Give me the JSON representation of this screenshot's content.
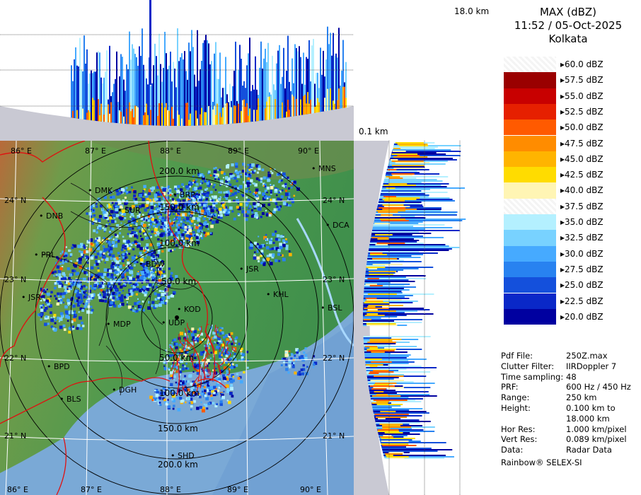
{
  "header": {
    "product": "MAX (dBZ)",
    "datetime": "11:52 / 05-Oct-2025",
    "station": "Kolkata"
  },
  "profile_labels": {
    "top_height": "18.0 km",
    "bottom_height": "0.1 km"
  },
  "legend": [
    {
      "label": "60.0 dBZ",
      "color": "#ffffff"
    },
    {
      "label": "57.5 dBZ",
      "color": "#9a0000"
    },
    {
      "label": "55.0 dBZ",
      "color": "#c80000"
    },
    {
      "label": "52.5 dBZ",
      "color": "#e62000"
    },
    {
      "label": "50.0 dBZ",
      "color": "#ff5a00"
    },
    {
      "label": "47.5 dBZ",
      "color": "#ff8c00"
    },
    {
      "label": "45.0 dBZ",
      "color": "#ffb400"
    },
    {
      "label": "42.5 dBZ",
      "color": "#ffdc00"
    },
    {
      "label": "40.0 dBZ",
      "color": "#fff5b4"
    },
    {
      "label": "37.5 dBZ",
      "color": "#ffffff"
    },
    {
      "label": "35.0 dBZ",
      "color": "#b4f0ff"
    },
    {
      "label": "32.5 dBZ",
      "color": "#78d2ff"
    },
    {
      "label": "30.0 dBZ",
      "color": "#46aaff"
    },
    {
      "label": "27.5 dBZ",
      "color": "#2882f0"
    },
    {
      "label": "25.0 dBZ",
      "color": "#1450dc"
    },
    {
      "label": "22.5 dBZ",
      "color": "#0a28c8"
    },
    {
      "label": "20.0 dBZ",
      "color": "#0000a0"
    }
  ],
  "info": [
    {
      "key": "Pdf File:",
      "value": "250Z.max"
    },
    {
      "key": "Clutter Filter:",
      "value": "IIRDoppler 7"
    },
    {
      "key": "Time sampling:",
      "value": "48"
    },
    {
      "key": "PRF:",
      "value": "600 Hz / 450 Hz"
    },
    {
      "key": "Range:",
      "value": "250 km"
    },
    {
      "key": "Height:",
      "value": "0.100 km to"
    },
    {
      "key": "",
      "value": "18.000 km"
    },
    {
      "key": "Hor Res:",
      "value": "1.000 km/pixel"
    },
    {
      "key": "Vert Res:",
      "value": "0.089 km/pixel"
    },
    {
      "key": "Data:",
      "value": "Radar Data"
    }
  ],
  "footer": "Rainbow® SELEX-SI",
  "map": {
    "lon_labels": [
      "86° E",
      "87° E",
      "88° E",
      "89° E",
      "90° E"
    ],
    "lat_labels": [
      "24° N",
      "23° N",
      "22° N",
      "21° N"
    ],
    "range_labels": [
      "50.0 km",
      "100.0 km",
      "150.0 km",
      "200.0 km"
    ],
    "cities": [
      "MNS",
      "DMK",
      "DNB",
      "SUR",
      "BRP",
      "DCA",
      "PRL",
      "BDW",
      "JSR",
      "KHL",
      "BSL",
      "MDP",
      "KOD",
      "UDP",
      "BPD",
      "DGH",
      "BLS",
      "SHD",
      "JSR"
    ]
  }
}
